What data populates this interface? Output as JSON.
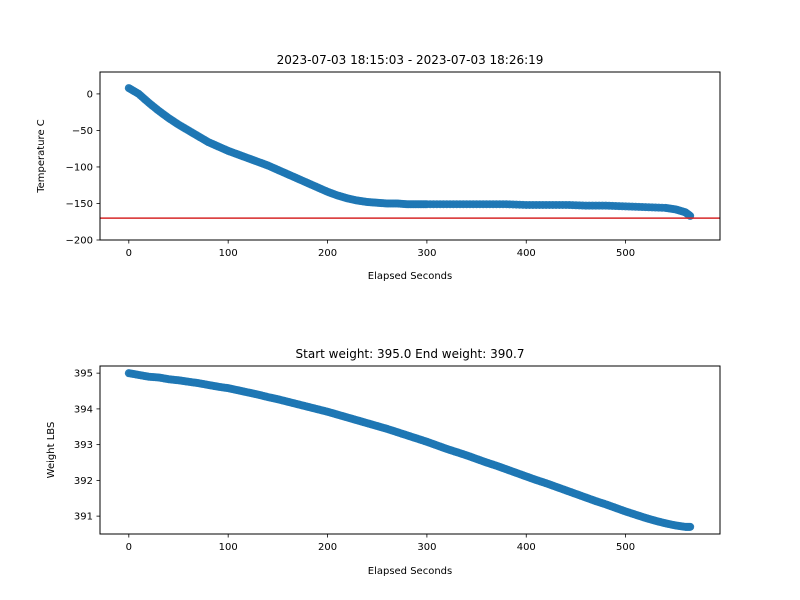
{
  "chart_data": [
    {
      "type": "scatter",
      "title": "2023-07-03 18:15:03 - 2023-07-03 18:26:19",
      "xlabel": "Elapsed Seconds",
      "ylabel": "Temperature C",
      "xlim": [
        -29,
        595
      ],
      "ylim": [
        -200,
        30
      ],
      "xticks": [
        0,
        100,
        200,
        300,
        400,
        500
      ],
      "yticks": [
        0,
        -50,
        -100,
        -150,
        -200
      ],
      "grid": false,
      "legend": "none",
      "marker_color": "#1f77b4",
      "reference_line": {
        "y": -170,
        "color": "#d62728"
      },
      "series": [
        {
          "x": [
            0,
            10,
            20,
            30,
            40,
            50,
            60,
            70,
            80,
            90,
            100,
            110,
            120,
            130,
            140,
            150,
            160,
            170,
            180,
            190,
            200,
            210,
            220,
            230,
            240,
            250,
            260,
            270,
            280,
            290,
            300,
            320,
            340,
            360,
            380,
            400,
            420,
            440,
            460,
            480,
            500,
            520,
            540,
            550,
            560,
            565
          ],
          "y": [
            8,
            0,
            -12,
            -23,
            -33,
            -42,
            -50,
            -58,
            -66,
            -72,
            -78,
            -83,
            -88,
            -93,
            -98,
            -104,
            -110,
            -116,
            -122,
            -128,
            -134,
            -139,
            -143,
            -146,
            -148,
            -149,
            -150,
            -150,
            -151,
            -151,
            -151,
            -151,
            -151,
            -151,
            -151,
            -152,
            -152,
            -152,
            -153,
            -153,
            -154,
            -155,
            -156,
            -158,
            -162,
            -167
          ]
        }
      ]
    },
    {
      "type": "scatter",
      "title": "Start weight: 395.0 End weight: 390.7",
      "xlabel": "Elapsed Seconds",
      "ylabel": "Weight LBS",
      "xlim": [
        -29,
        595
      ],
      "ylim": [
        390.5,
        395.2
      ],
      "xticks": [
        0,
        100,
        200,
        300,
        400,
        500
      ],
      "yticks": [
        395,
        394,
        393,
        392,
        391
      ],
      "grid": false,
      "legend": "none",
      "marker_color": "#1f77b4",
      "series": [
        {
          "x": [
            0,
            10,
            20,
            30,
            40,
            50,
            60,
            70,
            80,
            90,
            100,
            110,
            120,
            130,
            140,
            150,
            160,
            170,
            180,
            190,
            200,
            210,
            220,
            230,
            240,
            250,
            260,
            270,
            280,
            290,
            300,
            310,
            320,
            330,
            340,
            350,
            360,
            370,
            380,
            390,
            400,
            410,
            420,
            430,
            440,
            450,
            460,
            470,
            480,
            490,
            500,
            510,
            520,
            530,
            540,
            550,
            560,
            565
          ],
          "y": [
            395.0,
            394.95,
            394.9,
            394.88,
            394.83,
            394.8,
            394.76,
            394.72,
            394.67,
            394.62,
            394.58,
            394.52,
            394.46,
            394.4,
            394.33,
            394.27,
            394.2,
            394.13,
            394.06,
            393.99,
            393.92,
            393.84,
            393.76,
            393.68,
            393.6,
            393.52,
            393.44,
            393.35,
            393.26,
            393.17,
            393.08,
            392.98,
            392.88,
            392.79,
            392.7,
            392.6,
            392.5,
            392.41,
            392.31,
            392.21,
            392.11,
            392.01,
            391.92,
            391.82,
            391.72,
            391.62,
            391.52,
            391.42,
            391.33,
            391.23,
            391.13,
            391.04,
            390.95,
            390.87,
            390.8,
            390.74,
            390.7,
            390.7
          ]
        }
      ]
    }
  ]
}
